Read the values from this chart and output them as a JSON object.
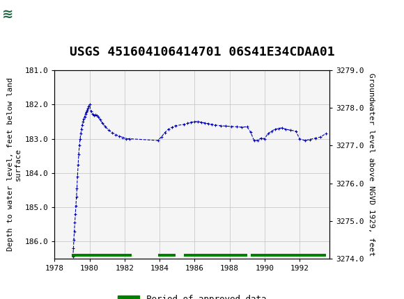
{
  "title": "USGS 451604106414701 06S41E34CDAA01",
  "ylabel_left": "Depth to water level, feet below land\nsurface",
  "ylabel_right": "Groundwater level above NGVD 1929, feet",
  "ylim_left": [
    186.5,
    181.0
  ],
  "ylim_right": [
    3274.0,
    3279.0
  ],
  "xlim": [
    1978.0,
    1993.7
  ],
  "xticks": [
    1978,
    1980,
    1982,
    1984,
    1986,
    1988,
    1990,
    1992
  ],
  "yticks_left": [
    181.0,
    182.0,
    183.0,
    184.0,
    185.0,
    186.0
  ],
  "yticks_right": [
    3274.0,
    3275.0,
    3276.0,
    3277.0,
    3278.0,
    3279.0
  ],
  "line_color": "#0000BB",
  "marker": "+",
  "linestyle": "--",
  "background_color": "#ffffff",
  "plot_bg_color": "#f5f5f5",
  "header_color": "#1a6640",
  "grid_color": "#c8c8c8",
  "approved_color": "#008000",
  "approved_periods": [
    [
      1979.0,
      1982.4
    ],
    [
      1983.9,
      1984.9
    ],
    [
      1985.4,
      1989.0
    ],
    [
      1989.2,
      1993.5
    ]
  ],
  "data_x": [
    1979.05,
    1979.08,
    1979.1,
    1979.13,
    1979.16,
    1979.19,
    1979.22,
    1979.25,
    1979.28,
    1979.31,
    1979.35,
    1979.38,
    1979.42,
    1979.46,
    1979.5,
    1979.54,
    1979.58,
    1979.63,
    1979.67,
    1979.72,
    1979.76,
    1979.81,
    1979.85,
    1979.9,
    1979.95,
    1980.0,
    1980.08,
    1980.16,
    1980.25,
    1980.33,
    1980.42,
    1980.5,
    1980.6,
    1980.75,
    1980.9,
    1981.1,
    1981.3,
    1981.5,
    1981.7,
    1981.9,
    1982.1,
    1982.3,
    1983.9,
    1984.1,
    1984.3,
    1984.5,
    1984.7,
    1984.9,
    1985.4,
    1985.6,
    1985.8,
    1986.0,
    1986.2,
    1986.4,
    1986.6,
    1986.8,
    1987.0,
    1987.2,
    1987.5,
    1987.8,
    1988.1,
    1988.4,
    1988.7,
    1989.0,
    1989.2,
    1989.4,
    1989.6,
    1989.8,
    1990.0,
    1990.2,
    1990.4,
    1990.6,
    1990.8,
    1991.0,
    1991.2,
    1991.5,
    1991.8,
    1992.0,
    1992.3,
    1992.6,
    1992.9,
    1993.2,
    1993.5
  ],
  "data_y": [
    186.45,
    186.2,
    185.95,
    185.7,
    185.45,
    185.2,
    184.95,
    184.7,
    184.45,
    184.1,
    183.75,
    183.45,
    183.2,
    183.0,
    182.85,
    182.72,
    182.6,
    182.5,
    182.42,
    182.35,
    182.28,
    182.22,
    182.18,
    182.12,
    182.05,
    182.0,
    182.2,
    182.28,
    182.32,
    182.3,
    182.32,
    182.35,
    182.45,
    182.55,
    182.65,
    182.75,
    182.82,
    182.88,
    182.92,
    182.96,
    183.0,
    183.0,
    183.05,
    182.95,
    182.82,
    182.72,
    182.67,
    182.62,
    182.58,
    182.55,
    182.52,
    182.5,
    182.5,
    182.52,
    182.54,
    182.56,
    182.58,
    182.6,
    182.62,
    182.63,
    182.64,
    182.65,
    182.66,
    182.65,
    182.8,
    183.05,
    183.05,
    182.98,
    183.0,
    182.85,
    182.78,
    182.72,
    182.7,
    182.68,
    182.72,
    182.75,
    182.78,
    183.0,
    183.05,
    183.02,
    182.98,
    182.95,
    182.85
  ],
  "title_fontsize": 13,
  "axis_fontsize": 8,
  "tick_fontsize": 8,
  "legend_fontsize": 9
}
